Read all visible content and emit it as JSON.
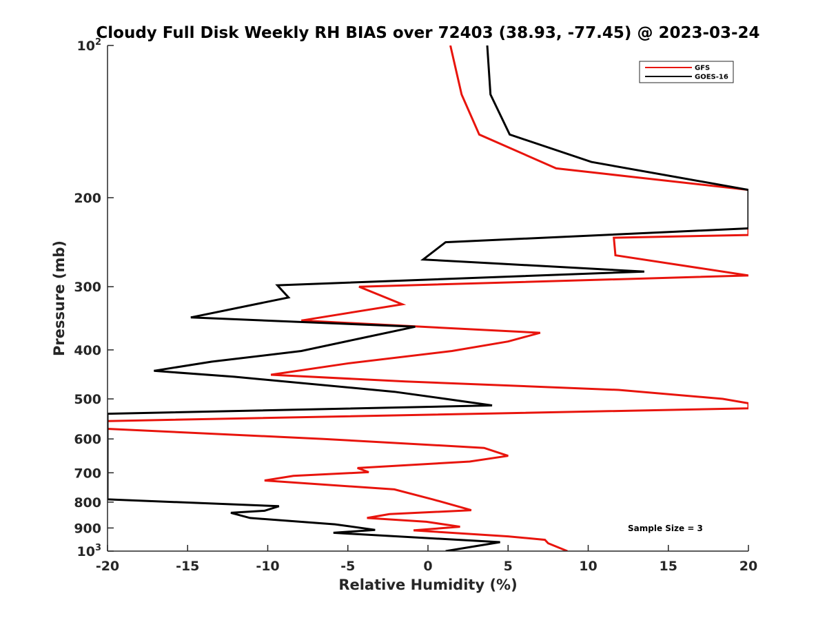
{
  "chart_data": {
    "type": "line",
    "title": "Cloudy Full Disk Weekly RH BIAS over 72403 (38.93, -77.45) @ 2023-03-24",
    "xlabel": "Relative Humidity (%)",
    "ylabel": "Pressure (mb)",
    "xlim": [
      -20,
      20
    ],
    "ylim": [
      100,
      1000
    ],
    "y_scale": "log",
    "y_reversed": true,
    "grid": false,
    "legend_position": "top-right",
    "x_ticks": [
      {
        "value": -20,
        "label": "-20"
      },
      {
        "value": -15,
        "label": "-15"
      },
      {
        "value": -10,
        "label": "-10"
      },
      {
        "value": -5,
        "label": "-5"
      },
      {
        "value": 0,
        "label": "0"
      },
      {
        "value": 5,
        "label": "5"
      },
      {
        "value": 10,
        "label": "10"
      },
      {
        "value": 15,
        "label": "15"
      },
      {
        "value": 20,
        "label": "20"
      }
    ],
    "y_ticks": [
      {
        "value": 100,
        "base": "10",
        "exp": "2"
      },
      {
        "value": 200,
        "base": "200",
        "exp": ""
      },
      {
        "value": 300,
        "base": "300",
        "exp": ""
      },
      {
        "value": 400,
        "base": "400",
        "exp": ""
      },
      {
        "value": 500,
        "base": "500",
        "exp": ""
      },
      {
        "value": 600,
        "base": "600",
        "exp": ""
      },
      {
        "value": 700,
        "base": "700",
        "exp": ""
      },
      {
        "value": 800,
        "base": "800",
        "exp": ""
      },
      {
        "value": 900,
        "base": "900",
        "exp": ""
      },
      {
        "value": 1000,
        "base": "10",
        "exp": "3"
      }
    ],
    "annotation": "Sample Size = 3",
    "series": [
      {
        "name": "GFS",
        "color": "#e8140c",
        "points": [
          {
            "x": 1.4,
            "p": 100
          },
          {
            "x": 2.1,
            "p": 125
          },
          {
            "x": 3.2,
            "p": 150
          },
          {
            "x": 8,
            "p": 175
          },
          {
            "x": 20,
            "p": 193
          },
          {
            "x": 20,
            "p": 237
          },
          {
            "x": 11.6,
            "p": 240
          },
          {
            "x": 11.7,
            "p": 260
          },
          {
            "x": 20,
            "p": 285
          },
          {
            "x": -4.3,
            "p": 300
          },
          {
            "x": -1.6,
            "p": 325
          },
          {
            "x": -7.9,
            "p": 350
          },
          {
            "x": 7,
            "p": 370
          },
          {
            "x": 5,
            "p": 385
          },
          {
            "x": 1.5,
            "p": 402
          },
          {
            "x": -4.9,
            "p": 425
          },
          {
            "x": -9.8,
            "p": 448
          },
          {
            "x": -1.4,
            "p": 462
          },
          {
            "x": 11.9,
            "p": 480
          },
          {
            "x": 18.4,
            "p": 500
          },
          {
            "x": 20,
            "p": 510
          },
          {
            "x": 20,
            "p": 522
          },
          {
            "x": -20,
            "p": 553
          },
          {
            "x": -20,
            "p": 573
          },
          {
            "x": -6.5,
            "p": 600
          },
          {
            "x": 3.5,
            "p": 625
          },
          {
            "x": 5,
            "p": 648
          },
          {
            "x": 2.6,
            "p": 665
          },
          {
            "x": -4.4,
            "p": 685
          },
          {
            "x": -3.7,
            "p": 698
          },
          {
            "x": -8.4,
            "p": 710
          },
          {
            "x": -10.2,
            "p": 725
          },
          {
            "x": -2.1,
            "p": 755
          },
          {
            "x": 0.3,
            "p": 790
          },
          {
            "x": 2.7,
            "p": 830
          },
          {
            "x": -2.4,
            "p": 845
          },
          {
            "x": -3.8,
            "p": 860
          },
          {
            "x": -0.1,
            "p": 875
          },
          {
            "x": 2,
            "p": 895
          },
          {
            "x": -0.9,
            "p": 910
          },
          {
            "x": 5,
            "p": 935
          },
          {
            "x": 7.3,
            "p": 950
          },
          {
            "x": 7.5,
            "p": 965
          },
          {
            "x": 8.7,
            "p": 1000
          }
        ]
      },
      {
        "name": "GOES-16",
        "color": "#000000",
        "points": [
          {
            "x": 3.7,
            "p": 100
          },
          {
            "x": 3.9,
            "p": 125
          },
          {
            "x": 5.1,
            "p": 150
          },
          {
            "x": 10.2,
            "p": 170
          },
          {
            "x": 20,
            "p": 193
          },
          {
            "x": 20,
            "p": 230
          },
          {
            "x": 1.1,
            "p": 245
          },
          {
            "x": -0.3,
            "p": 265
          },
          {
            "x": 13.5,
            "p": 280
          },
          {
            "x": -9.4,
            "p": 298
          },
          {
            "x": -8.7,
            "p": 315
          },
          {
            "x": -14.8,
            "p": 345
          },
          {
            "x": -0.8,
            "p": 360
          },
          {
            "x": -4.3,
            "p": 380
          },
          {
            "x": -7.9,
            "p": 402
          },
          {
            "x": -13.5,
            "p": 422
          },
          {
            "x": -17.1,
            "p": 440
          },
          {
            "x": -12.1,
            "p": 452
          },
          {
            "x": -2.1,
            "p": 484
          },
          {
            "x": 1.1,
            "p": 500
          },
          {
            "x": 4,
            "p": 515
          },
          {
            "x": -20,
            "p": 535
          },
          {
            "x": -20,
            "p": 790
          },
          {
            "x": -9.3,
            "p": 815
          },
          {
            "x": -10.2,
            "p": 832
          },
          {
            "x": -12.3,
            "p": 840
          },
          {
            "x": -11.1,
            "p": 860
          },
          {
            "x": -5.8,
            "p": 885
          },
          {
            "x": -3.3,
            "p": 908
          },
          {
            "x": -5.9,
            "p": 920
          },
          {
            "x": 4.5,
            "p": 960
          },
          {
            "x": 1.1,
            "p": 1000
          }
        ]
      }
    ]
  }
}
